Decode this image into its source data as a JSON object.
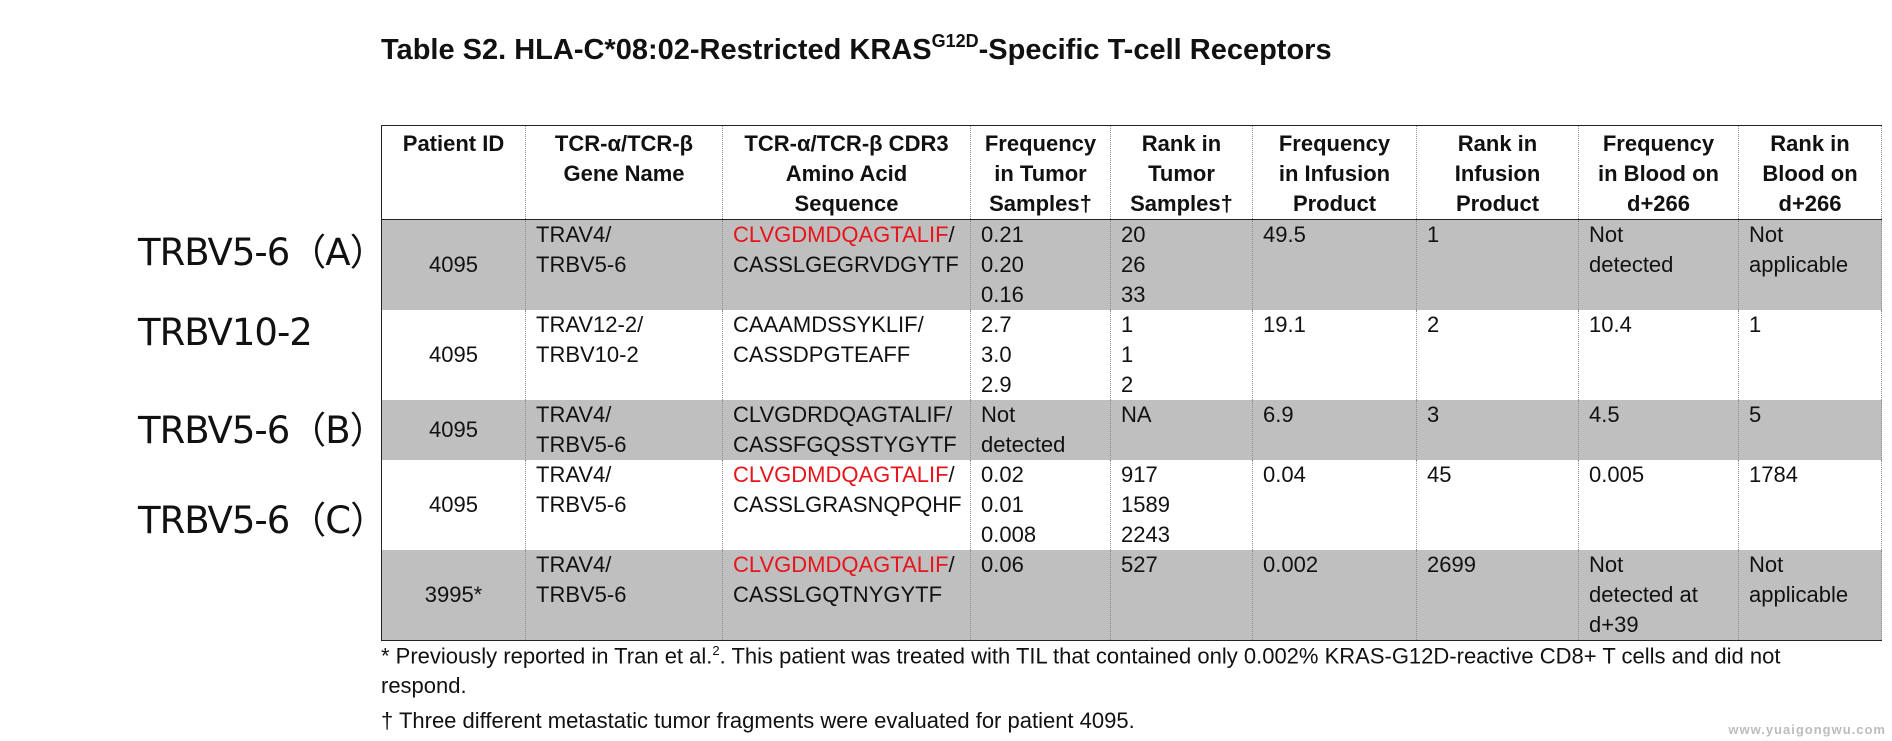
{
  "title": {
    "prefix": "Table S2. HLA-C*08:02-Restricted KRAS",
    "superscript": "G12D",
    "suffix": "-Specific T-cell Receptors"
  },
  "side_labels": [
    "TRBV5-6（A）",
    "TRBV10-2",
    "TRBV5-6（B）",
    "TRBV5-6（C）"
  ],
  "table": {
    "headers": [
      [
        "Patient ID"
      ],
      [
        "TCR-α/TCR-β",
        "Gene Name"
      ],
      [
        "TCR-α/TCR-β CDR3",
        "Amino Acid",
        "Sequence"
      ],
      [
        "Frequency",
        "in Tumor",
        "Samples†"
      ],
      [
        "Rank in",
        "Tumor",
        "Samples†"
      ],
      [
        "Frequency",
        "in Infusion",
        "Product"
      ],
      [
        "Rank in",
        "Infusion",
        "Product"
      ],
      [
        "Frequency",
        "in Blood on",
        "d+266"
      ],
      [
        "Rank in",
        "Blood on",
        "d+266"
      ]
    ],
    "rows": [
      {
        "patient_id": "4095",
        "gene": [
          "TRAV4/",
          "TRBV5-6"
        ],
        "cdr3_alpha": "CLVGDMDQAGTALIF",
        "cdr3_alpha_red": true,
        "cdr3_sep": "/",
        "cdr3_beta": "CASSLGEGRVDGYTF",
        "freq_tumor": [
          "0.21",
          "0.20",
          "0.16"
        ],
        "rank_tumor": [
          "20",
          "26",
          "33"
        ],
        "freq_infusion": [
          "49.5"
        ],
        "rank_infusion": [
          "1"
        ],
        "freq_blood": [
          "Not",
          "detected"
        ],
        "rank_blood": [
          "Not",
          "applicable"
        ]
      },
      {
        "patient_id": "4095",
        "gene": [
          "TRAV12-2/",
          "TRBV10-2"
        ],
        "cdr3_alpha": "CAAAMDSSYKLIF",
        "cdr3_alpha_red": false,
        "cdr3_sep": "/",
        "cdr3_beta": "CASSDPGTEAFF",
        "freq_tumor": [
          "2.7",
          "3.0",
          "2.9"
        ],
        "rank_tumor": [
          "1",
          "1",
          "2"
        ],
        "freq_infusion": [
          "19.1"
        ],
        "rank_infusion": [
          "2"
        ],
        "freq_blood": [
          "10.4"
        ],
        "rank_blood": [
          "1"
        ]
      },
      {
        "patient_id": "4095",
        "gene": [
          "TRAV4/",
          "TRBV5-6"
        ],
        "cdr3_alpha": "CLVGDRDQAGTALIF",
        "cdr3_alpha_red": false,
        "cdr3_sep": "/",
        "cdr3_beta": "CASSFGQSSTYGYTF",
        "freq_tumor": [
          "Not",
          "detected"
        ],
        "rank_tumor": [
          "NA"
        ],
        "freq_infusion": [
          "6.9"
        ],
        "rank_infusion": [
          "3"
        ],
        "freq_blood": [
          "4.5"
        ],
        "rank_blood": [
          "5"
        ]
      },
      {
        "patient_id": "4095",
        "gene": [
          "TRAV4/",
          "TRBV5-6"
        ],
        "cdr3_alpha": "CLVGDMDQAGTALIF",
        "cdr3_alpha_red": true,
        "cdr3_sep": "/",
        "cdr3_beta": "CASSLGRASNQPQHF",
        "freq_tumor": [
          "0.02",
          "0.01",
          "0.008"
        ],
        "rank_tumor": [
          "917",
          "1589",
          "2243"
        ],
        "freq_infusion": [
          "0.04"
        ],
        "rank_infusion": [
          "45"
        ],
        "freq_blood": [
          "0.005"
        ],
        "rank_blood": [
          "1784"
        ]
      },
      {
        "patient_id": "3995*",
        "gene": [
          "TRAV4/",
          "TRBV5-6"
        ],
        "cdr3_alpha": "CLVGDMDQAGTALIF",
        "cdr3_alpha_red": true,
        "cdr3_sep": "/",
        "cdr3_beta": "CASSLGQTNYGYTF",
        "freq_tumor": [
          "0.06"
        ],
        "rank_tumor": [
          "527"
        ],
        "freq_infusion": [
          "0.002"
        ],
        "rank_infusion": [
          "2699"
        ],
        "freq_blood": [
          "Not",
          "detected at",
          "d+39"
        ],
        "rank_blood": [
          "Not",
          "applicable"
        ]
      }
    ]
  },
  "footnotes": {
    "line1a": "* Previously reported in Tran et al.",
    "line1_sup": "2",
    "line1b": ". This patient was treated with TIL that contained only 0.002% KRAS-G12D-reactive CD8+ T cells and did not",
    "line2": "respond.",
    "line3": "† Three different metastatic tumor fragments were evaluated for patient 4095."
  },
  "watermark": "www.yuaigongwu.com",
  "colors": {
    "row_shade": "#bfbfbf",
    "highlight_red": "#e8141b"
  }
}
